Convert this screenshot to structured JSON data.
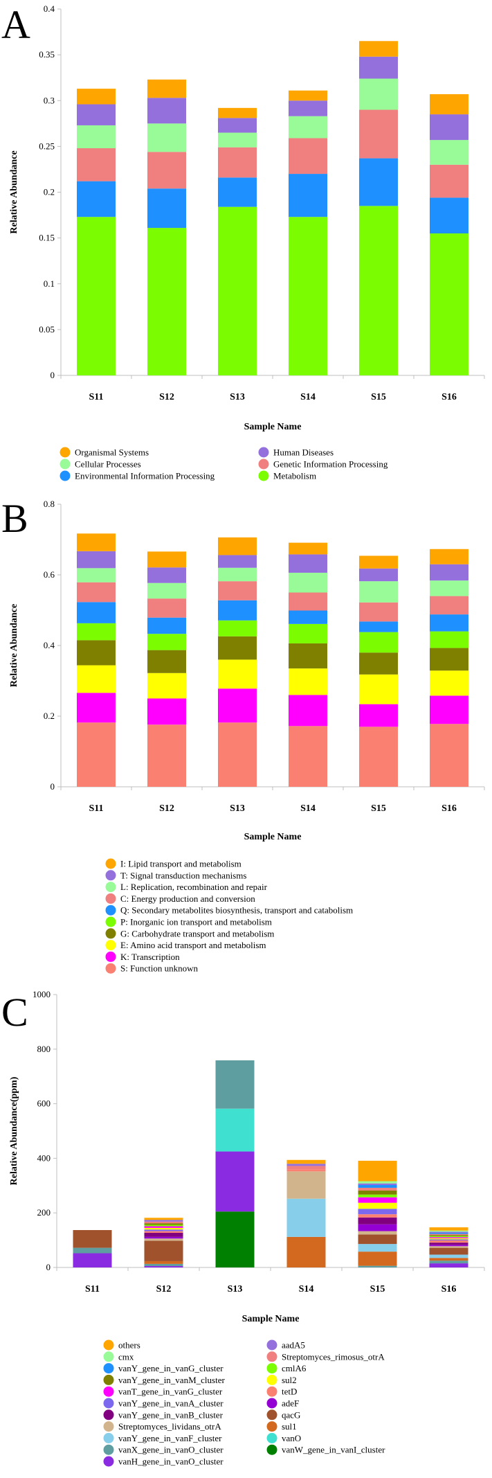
{
  "panels": {
    "a": {
      "letter": "A"
    },
    "b": {
      "letter": "B"
    },
    "c": {
      "letter": "C"
    }
  },
  "chart_data": [
    {
      "type": "bar",
      "stacked": true,
      "categories": [
        "S11",
        "S12",
        "S13",
        "S14",
        "S15",
        "S16"
      ],
      "xlabel": "Sample Name",
      "ylabel": "Relative Abundance",
      "ylim": [
        0,
        0.4
      ],
      "yticks": [
        "0",
        "0.05",
        "0.1",
        "0.15",
        "0.2",
        "0.25",
        "0.3",
        "0.35",
        "0.4"
      ],
      "legend_position": "bottom",
      "series": [
        {
          "name": "Metabolism",
          "color": "#7CFC00",
          "values": [
            0.173,
            0.161,
            0.184,
            0.173,
            0.185,
            0.155
          ]
        },
        {
          "name": "Environmental Information Processing",
          "color": "#1E90FF",
          "values": [
            0.039,
            0.043,
            0.032,
            0.047,
            0.052,
            0.039
          ]
        },
        {
          "name": "Genetic Information Processing",
          "color": "#F08080",
          "values": [
            0.036,
            0.04,
            0.033,
            0.039,
            0.053,
            0.036
          ]
        },
        {
          "name": "Cellular Processes",
          "color": "#98FB98",
          "values": [
            0.025,
            0.031,
            0.016,
            0.024,
            0.034,
            0.027
          ]
        },
        {
          "name": "Human Diseases",
          "color": "#9370DB",
          "values": [
            0.023,
            0.028,
            0.016,
            0.017,
            0.024,
            0.028
          ]
        },
        {
          "name": "Organismal Systems",
          "color": "#FFA500",
          "values": [
            0.017,
            0.02,
            0.011,
            0.011,
            0.017,
            0.022
          ]
        }
      ],
      "legend_order": [
        "Organismal Systems",
        "Human Diseases",
        "Cellular Processes",
        "Genetic Information Processing",
        "Environmental Information Processing",
        "Metabolism"
      ]
    },
    {
      "type": "bar",
      "stacked": true,
      "categories": [
        "S11",
        "S12",
        "S13",
        "S14",
        "S15",
        "S16"
      ],
      "xlabel": "Sample Name",
      "ylabel": "Relative Abundance",
      "ylim": [
        0,
        0.8
      ],
      "yticks": [
        "0",
        "0.2",
        "0.4",
        "0.6",
        "0.8"
      ],
      "legend_position": "bottom",
      "series": [
        {
          "name": "S: Function unknown",
          "color": "#FA8072",
          "values": [
            0.182,
            0.176,
            0.182,
            0.172,
            0.17,
            0.178
          ]
        },
        {
          "name": "K: Transcription",
          "color": "#FF00FF",
          "values": [
            0.084,
            0.074,
            0.096,
            0.088,
            0.064,
            0.08
          ]
        },
        {
          "name": "E: Amino acid transport and metabolism",
          "color": "#FFFF00",
          "values": [
            0.078,
            0.072,
            0.082,
            0.075,
            0.084,
            0.071
          ]
        },
        {
          "name": "G: Carbohydrate transport and metabolism",
          "color": "#808000",
          "values": [
            0.071,
            0.065,
            0.066,
            0.071,
            0.062,
            0.064
          ]
        },
        {
          "name": "P: Inorganic ion transport and metabolism",
          "color": "#7CFC00",
          "values": [
            0.048,
            0.046,
            0.045,
            0.055,
            0.058,
            0.047
          ]
        },
        {
          "name": "Q: Secondary metabolites biosynthesis, transport and catabolism",
          "color": "#1E90FF",
          "values": [
            0.06,
            0.046,
            0.057,
            0.038,
            0.03,
            0.048
          ]
        },
        {
          "name": "C: Energy production and conversion",
          "color": "#F08080",
          "values": [
            0.056,
            0.054,
            0.054,
            0.051,
            0.054,
            0.052
          ]
        },
        {
          "name": "L: Replication, recombination and repair",
          "color": "#98FB98",
          "values": [
            0.04,
            0.044,
            0.038,
            0.056,
            0.06,
            0.044
          ]
        },
        {
          "name": "T: Signal transduction mechanisms",
          "color": "#9370DB",
          "values": [
            0.048,
            0.044,
            0.036,
            0.052,
            0.036,
            0.046
          ]
        },
        {
          "name": "I: Lipid transport and metabolism",
          "color": "#FFA500",
          "values": [
            0.05,
            0.045,
            0.05,
            0.033,
            0.036,
            0.043
          ]
        }
      ],
      "legend_order": [
        "I: Lipid transport and metabolism",
        "T: Signal transduction mechanisms",
        "L: Replication, recombination and repair",
        "C: Energy production and conversion",
        "Q: Secondary metabolites biosynthesis, transport and catabolism",
        "P: Inorganic ion transport and metabolism",
        "G: Carbohydrate transport and metabolism",
        "E: Amino acid transport and metabolism",
        "K: Transcription",
        "S: Function unknown"
      ]
    },
    {
      "type": "bar",
      "stacked": true,
      "categories": [
        "S11",
        "S12",
        "S13",
        "S14",
        "S15",
        "S16"
      ],
      "xlabel": "Sample Name",
      "ylabel": "Relative Abundance(ppm)",
      "ylim": [
        0,
        1000
      ],
      "yticks": [
        "0",
        "200",
        "400",
        "600",
        "800",
        "1000"
      ],
      "legend_position": "bottom",
      "series": [
        {
          "name": "vanW_gene_in_vanI_cluster",
          "color": "#008000",
          "values": [
            0,
            0,
            205,
            0,
            0,
            0
          ]
        },
        {
          "name": "vanH_gene_in_vanO_cluster",
          "color": "#8A2BE2",
          "values": [
            52,
            5,
            220,
            0,
            0,
            15
          ]
        },
        {
          "name": "vanO",
          "color": "#40E0D0",
          "values": [
            0,
            0,
            157,
            0,
            0,
            0
          ]
        },
        {
          "name": "vanX_gene_in_vanO_cluster",
          "color": "#5F9EA0",
          "values": [
            20,
            8,
            177,
            0,
            6,
            10
          ]
        },
        {
          "name": "sul1",
          "color": "#D2691E",
          "values": [
            0,
            10,
            0,
            112,
            52,
            10
          ]
        },
        {
          "name": "vanY_gene_in_vanF_cluster",
          "color": "#87CEEB",
          "values": [
            0,
            0,
            0,
            140,
            28,
            12
          ]
        },
        {
          "name": "qacG",
          "color": "#A0522D",
          "values": [
            65,
            75,
            0,
            0,
            35,
            25
          ]
        },
        {
          "name": "Streptomyces_lividans_otrA",
          "color": "#D2B48C",
          "values": [
            0,
            8,
            0,
            100,
            12,
            6
          ]
        },
        {
          "name": "adeF",
          "color": "#9400D3",
          "values": [
            0,
            6,
            0,
            0,
            25,
            5
          ]
        },
        {
          "name": "vanY_gene_in_vanB_cluster",
          "color": "#800080",
          "values": [
            0,
            15,
            0,
            0,
            25,
            8
          ]
        },
        {
          "name": "tetD",
          "color": "#FA8072",
          "values": [
            0,
            6,
            0,
            8,
            12,
            8
          ]
        },
        {
          "name": "vanY_gene_in_vanA_cluster",
          "color": "#7B68EE",
          "values": [
            0,
            6,
            0,
            0,
            20,
            4
          ]
        },
        {
          "name": "sul2",
          "color": "#FFFF00",
          "values": [
            0,
            6,
            0,
            0,
            22,
            4
          ]
        },
        {
          "name": "vanT_gene_in_vanG_cluster",
          "color": "#FF00FF",
          "values": [
            0,
            6,
            0,
            0,
            20,
            4
          ]
        },
        {
          "name": "cmlA6",
          "color": "#7CFC00",
          "values": [
            0,
            5,
            0,
            0,
            10,
            4
          ]
        },
        {
          "name": "vanY_gene_in_vanM_cluster",
          "color": "#808000",
          "values": [
            0,
            6,
            0,
            0,
            15,
            4
          ]
        },
        {
          "name": "Streptomyces_rimosus_otrA",
          "color": "#F08080",
          "values": [
            0,
            6,
            0,
            12,
            10,
            4
          ]
        },
        {
          "name": "vanY_gene_in_vanG_cluster",
          "color": "#1E90FF",
          "values": [
            0,
            0,
            0,
            0,
            10,
            4
          ]
        },
        {
          "name": "aadA5",
          "color": "#9370DB",
          "values": [
            0,
            6,
            0,
            8,
            6,
            4
          ]
        },
        {
          "name": "cmx",
          "color": "#98FB98",
          "values": [
            0,
            0,
            0,
            0,
            8,
            4
          ]
        },
        {
          "name": "others",
          "color": "#FFA500",
          "values": [
            0,
            8,
            0,
            14,
            75,
            12
          ]
        }
      ],
      "legend_left": [
        "others",
        "cmx",
        "vanY_gene_in_vanG_cluster",
        "vanY_gene_in_vanM_cluster",
        "vanT_gene_in_vanG_cluster",
        "vanY_gene_in_vanA_cluster",
        "vanY_gene_in_vanB_cluster",
        "Streptomyces_lividans_otrA",
        "vanY_gene_in_vanF_cluster",
        "vanX_gene_in_vanO_cluster",
        "vanH_gene_in_vanO_cluster"
      ],
      "legend_right": [
        "aadA5",
        "Streptomyces_rimosus_otrA",
        "cmlA6",
        "sul2",
        "tetD",
        "adeF",
        "qacG",
        "sul1",
        "vanO",
        "vanW_gene_in_vanI_cluster"
      ]
    }
  ]
}
